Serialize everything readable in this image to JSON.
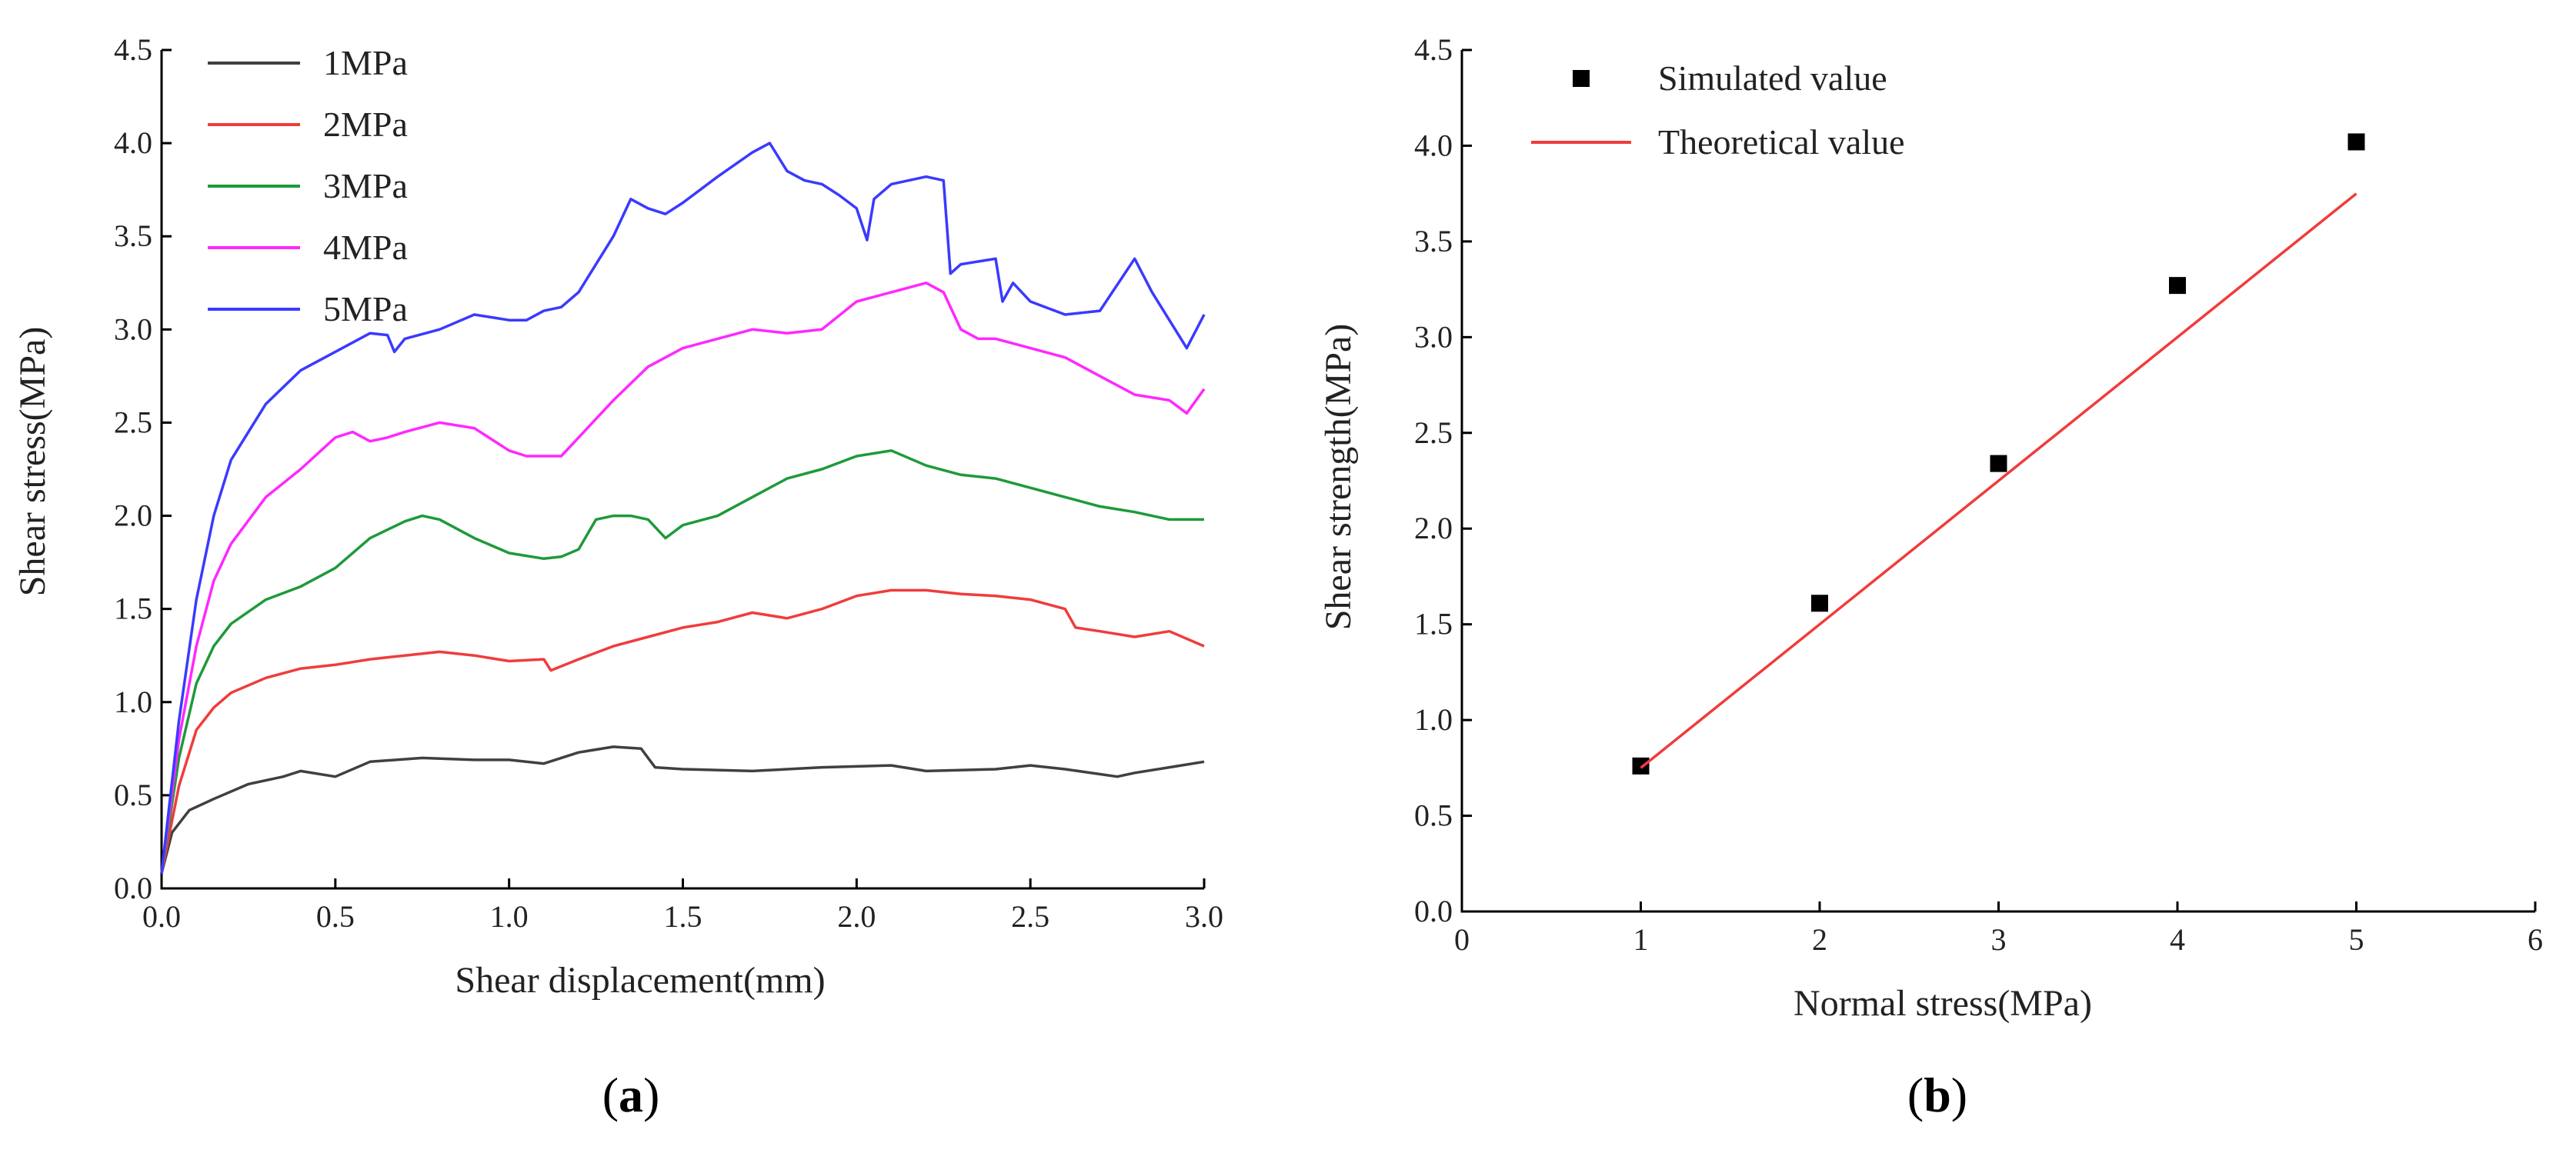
{
  "figure": {
    "panel_a_label": {
      "open": "(",
      "letter": "a",
      "close": ")"
    },
    "panel_b_label": {
      "open": "(",
      "letter": "b",
      "close": ")"
    }
  },
  "chart_data": [
    {
      "type": "line",
      "panel": "a",
      "title": "",
      "xlabel": "Shear displacement(mm)",
      "ylabel": "Shear stress(MPa)",
      "xlim": [
        0,
        3.0
      ],
      "ylim": [
        0,
        4.5
      ],
      "xticks": [
        "0.0",
        "0.5",
        "1.0",
        "1.5",
        "2.0",
        "2.5",
        "3.0"
      ],
      "yticks": [
        "0.0",
        "0.5",
        "1.0",
        "1.5",
        "2.0",
        "2.5",
        "3.0",
        "3.5",
        "4.0",
        "4.5"
      ],
      "grid": false,
      "legend_position": "top-left",
      "series": [
        {
          "name": "1MPa",
          "color": "#404040",
          "x": [
            0,
            0.03,
            0.08,
            0.15,
            0.25,
            0.35,
            0.4,
            0.5,
            0.6,
            0.75,
            0.9,
            1.0,
            1.1,
            1.2,
            1.3,
            1.38,
            1.42,
            1.5,
            1.7,
            1.9,
            2.1,
            2.2,
            2.4,
            2.5,
            2.6,
            2.75,
            2.8,
            2.9,
            3.0
          ],
          "values": [
            0.08,
            0.3,
            0.42,
            0.48,
            0.56,
            0.6,
            0.63,
            0.6,
            0.68,
            0.7,
            0.69,
            0.69,
            0.67,
            0.73,
            0.76,
            0.75,
            0.65,
            0.64,
            0.63,
            0.65,
            0.66,
            0.63,
            0.64,
            0.66,
            0.64,
            0.6,
            0.62,
            0.65,
            0.68
          ]
        },
        {
          "name": "2MPa",
          "color": "#f03c3c",
          "x": [
            0,
            0.05,
            0.1,
            0.15,
            0.2,
            0.3,
            0.4,
            0.5,
            0.6,
            0.7,
            0.8,
            0.9,
            1.0,
            1.1,
            1.12,
            1.2,
            1.3,
            1.4,
            1.5,
            1.6,
            1.7,
            1.8,
            1.9,
            2.0,
            2.1,
            2.2,
            2.3,
            2.4,
            2.5,
            2.6,
            2.63,
            2.7,
            2.8,
            2.9,
            3.0
          ],
          "values": [
            0.08,
            0.55,
            0.85,
            0.97,
            1.05,
            1.13,
            1.18,
            1.2,
            1.23,
            1.25,
            1.27,
            1.25,
            1.22,
            1.23,
            1.17,
            1.23,
            1.3,
            1.35,
            1.4,
            1.43,
            1.48,
            1.45,
            1.5,
            1.57,
            1.6,
            1.6,
            1.58,
            1.57,
            1.55,
            1.5,
            1.4,
            1.38,
            1.35,
            1.38,
            1.3
          ]
        },
        {
          "name": "3MPa",
          "color": "#1e9a3a",
          "x": [
            0,
            0.05,
            0.1,
            0.15,
            0.2,
            0.3,
            0.4,
            0.5,
            0.6,
            0.7,
            0.75,
            0.8,
            0.9,
            1.0,
            1.1,
            1.15,
            1.2,
            1.25,
            1.3,
            1.35,
            1.4,
            1.45,
            1.5,
            1.6,
            1.7,
            1.8,
            1.9,
            2.0,
            2.1,
            2.2,
            2.3,
            2.4,
            2.5,
            2.6,
            2.7,
            2.8,
            2.9,
            3.0
          ],
          "values": [
            0.08,
            0.7,
            1.1,
            1.3,
            1.42,
            1.55,
            1.62,
            1.72,
            1.88,
            1.97,
            2.0,
            1.98,
            1.88,
            1.8,
            1.77,
            1.78,
            1.82,
            1.98,
            2.0,
            2.0,
            1.98,
            1.88,
            1.95,
            2.0,
            2.1,
            2.2,
            2.25,
            2.32,
            2.35,
            2.27,
            2.22,
            2.2,
            2.15,
            2.1,
            2.05,
            2.02,
            1.98,
            1.98
          ]
        },
        {
          "name": "4MPa",
          "color": "#ff28ff",
          "x": [
            0,
            0.05,
            0.1,
            0.15,
            0.2,
            0.3,
            0.4,
            0.5,
            0.55,
            0.6,
            0.65,
            0.7,
            0.8,
            0.9,
            1.0,
            1.05,
            1.1,
            1.15,
            1.2,
            1.3,
            1.4,
            1.5,
            1.6,
            1.7,
            1.8,
            1.9,
            2.0,
            2.1,
            2.2,
            2.25,
            2.3,
            2.35,
            2.4,
            2.5,
            2.6,
            2.7,
            2.8,
            2.9,
            2.95,
            3.0
          ],
          "values": [
            0.08,
            0.8,
            1.3,
            1.65,
            1.85,
            2.1,
            2.25,
            2.42,
            2.45,
            2.4,
            2.42,
            2.45,
            2.5,
            2.47,
            2.35,
            2.32,
            2.32,
            2.32,
            2.42,
            2.62,
            2.8,
            2.9,
            2.95,
            3.0,
            2.98,
            3.0,
            3.15,
            3.2,
            3.25,
            3.2,
            3.0,
            2.95,
            2.95,
            2.9,
            2.85,
            2.75,
            2.65,
            2.62,
            2.55,
            2.68
          ]
        },
        {
          "name": "5MPa",
          "color": "#3a3aff",
          "x": [
            0,
            0.05,
            0.1,
            0.15,
            0.2,
            0.3,
            0.4,
            0.5,
            0.55,
            0.6,
            0.65,
            0.67,
            0.7,
            0.8,
            0.9,
            1.0,
            1.05,
            1.1,
            1.15,
            1.2,
            1.3,
            1.35,
            1.4,
            1.45,
            1.5,
            1.6,
            1.7,
            1.75,
            1.8,
            1.85,
            1.9,
            1.95,
            2.0,
            2.03,
            2.05,
            2.1,
            2.2,
            2.25,
            2.27,
            2.3,
            2.4,
            2.42,
            2.45,
            2.5,
            2.6,
            2.7,
            2.8,
            2.85,
            2.9,
            2.95,
            3.0
          ],
          "values": [
            0.08,
            0.9,
            1.55,
            2.0,
            2.3,
            2.6,
            2.78,
            2.88,
            2.93,
            2.98,
            2.97,
            2.88,
            2.95,
            3.0,
            3.08,
            3.05,
            3.05,
            3.1,
            3.12,
            3.2,
            3.5,
            3.7,
            3.65,
            3.62,
            3.68,
            3.82,
            3.95,
            4.0,
            3.85,
            3.8,
            3.78,
            3.72,
            3.65,
            3.48,
            3.7,
            3.78,
            3.82,
            3.8,
            3.3,
            3.35,
            3.38,
            3.15,
            3.25,
            3.15,
            3.08,
            3.1,
            3.38,
            3.2,
            3.05,
            2.9,
            3.08
          ]
        }
      ]
    },
    {
      "type": "scatter",
      "panel": "b",
      "title": "",
      "xlabel": "Normal stress(MPa)",
      "ylabel": "Shear strength(MPa)",
      "xlim": [
        0,
        6
      ],
      "ylim": [
        0,
        4.5
      ],
      "xticks": [
        "0",
        "1",
        "2",
        "3",
        "4",
        "5",
        "6"
      ],
      "yticks": [
        "0.0",
        "0.5",
        "1.0",
        "1.5",
        "2.0",
        "2.5",
        "3.0",
        "3.5",
        "4.0",
        "4.5"
      ],
      "grid": false,
      "legend_position": "top-left",
      "series": [
        {
          "name": "Simulated value",
          "kind": "marker",
          "color": "#000000",
          "x": [
            1,
            2,
            3,
            4,
            5
          ],
          "values": [
            0.76,
            1.61,
            2.34,
            3.27,
            4.02
          ]
        },
        {
          "name": "Theoretical value",
          "kind": "line",
          "color": "#f03c3c",
          "x": [
            1,
            5
          ],
          "values": [
            0.75,
            3.75
          ]
        }
      ]
    }
  ]
}
